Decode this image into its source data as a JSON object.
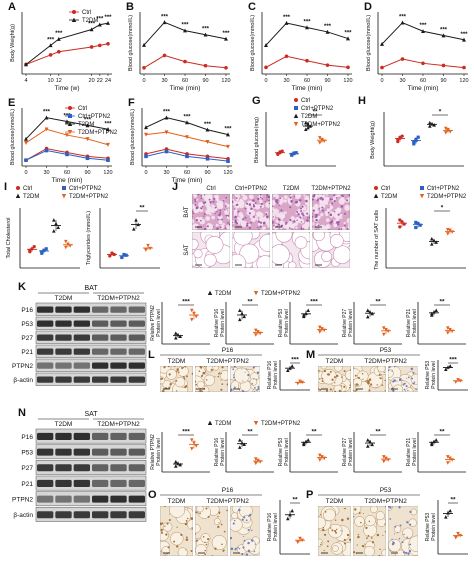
{
  "colors": {
    "ctrl": "#cc2b22",
    "t2dm": "#1b1b1b",
    "ptpn2": "#2c60c4",
    "t2dm_ptpn2": "#e2621c",
    "he_pink": "#e3b0cf",
    "he_purple": "#9c5aa8",
    "ihc_brown": "#a7733c",
    "ihc_blue": "#6e7fbf",
    "blot": "#1a1a1a"
  },
  "panels": {
    "A": {
      "letter": "A",
      "xlabel": "Time (w)",
      "ylabel": "Body Weight(g)",
      "xticks": [
        "4",
        "10",
        "12",
        "20",
        "22",
        "24"
      ],
      "legend": [
        "Ctrl",
        "T2DM"
      ],
      "stars": "*** ***** ** ***"
    },
    "B": {
      "letter": "B",
      "xlabel": "Time (min)",
      "ylabel": "Blood glucose(mmol/L)",
      "xticks": [
        "0",
        "30",
        "60",
        "90",
        "120"
      ],
      "stars": "***"
    },
    "C": {
      "letter": "C",
      "xlabel": "Time (min)",
      "ylabel": "Blood glucose(mmol/L)",
      "xticks": [
        "0",
        "30",
        "60",
        "90",
        "120"
      ],
      "stars": "***"
    },
    "D": {
      "letter": "D",
      "xlabel": "Time (min)",
      "ylabel": "Blood glucose(mmol/L)",
      "xticks": [
        "0",
        "30",
        "60",
        "90",
        "120"
      ],
      "stars": "***"
    },
    "E": {
      "letter": "E",
      "xlabel": "Time (min)",
      "ylabel": "Blood glucose(mmol/L)",
      "xticks": [
        "0",
        "30",
        "60",
        "90",
        "120"
      ],
      "legend": [
        "Ctrl",
        "Ctrl+PTPN2",
        "T2DM",
        "T2DM+PTPN2"
      ],
      "stars": "***"
    },
    "F": {
      "letter": "F",
      "xlabel": "Time (min)",
      "ylabel": "Blood glucose(mmol/L)",
      "xticks": [
        "0",
        "30",
        "60",
        "90",
        "120"
      ],
      "stars": "***"
    },
    "G": {
      "letter": "G",
      "ylabel": "Blood glucose(mg)",
      "legend": [
        "Ctrl",
        "Ctrl+PTPN2",
        "T2DM",
        "T2DM+PTPN2"
      ],
      "stars": "**"
    },
    "H": {
      "letter": "H",
      "ylabel": "Body Weight(g)",
      "stars": "*"
    },
    "I": {
      "letter": "I",
      "legend": [
        "Ctrl",
        "Ctrl+PTPN2",
        "T2DM",
        "T2DM+PTPN2"
      ],
      "ylabel_left": "Total Cholesterol",
      "ylabel_right": "Triglycerides (mmol/L)",
      "stars": "**"
    },
    "J": {
      "letter": "J",
      "cols": [
        "Ctrl",
        "Ctrl+PTPN2",
        "T2DM",
        "T2DM+PTPN2"
      ],
      "rows": [
        "BAT",
        "SAT"
      ],
      "legend": [
        "Ctrl",
        "Ctrl+PTPN2",
        "T2DM",
        "T2DM+PTPN2"
      ],
      "ylabel": "The number of SAT cells",
      "stars": "*"
    },
    "K": {
      "letter": "K",
      "tissue": "BAT",
      "groups": [
        "T2DM",
        "T2DM+PTPN2"
      ],
      "bands": [
        "P16",
        "P53",
        "P27",
        "P21",
        "PTPN2",
        "β-actin"
      ],
      "legend": [
        "T2DM",
        "T2DM+PTPN2"
      ],
      "plots": [
        "Relative PTPN2 Protein level",
        "Relative P16 Protein level",
        "Relative P53 Protein level",
        "Relative P27 Protein level",
        "Relative P21 Protein level"
      ],
      "stars": [
        "***",
        "**",
        "***",
        "**",
        "**"
      ]
    },
    "L": {
      "letter": "L",
      "marker": "P16",
      "groups": [
        "T2DM",
        "T2DM+PTPN2"
      ],
      "ylabel": "Relative P16 Protein level",
      "stars": "***"
    },
    "M": {
      "letter": "M",
      "marker": "P53",
      "groups": [
        "T2DM",
        "T2DM+PTPN2"
      ],
      "ylabel": "Relative P53 Protein level",
      "stars": "***"
    },
    "N": {
      "letter": "N",
      "tissue": "SAT",
      "groups": [
        "T2DM",
        "T2DM+PTPN2"
      ],
      "bands": [
        "P16",
        "P53",
        "P27",
        "P21",
        "PTPN2",
        "β-actin"
      ],
      "legend": [
        "T2DM",
        "T2DM+PTPN2"
      ],
      "plots": [
        "Relative PTPN2 Protein level",
        "Relative P16 Protein level",
        "Relative P53 Protein level",
        "Relative P27 Protein level",
        "Relative P21 Protein level"
      ],
      "stars": [
        "***",
        "**",
        "**",
        "**",
        "**"
      ]
    },
    "O": {
      "letter": "O",
      "marker": "P16",
      "groups": [
        "T2DM",
        "T2DM+PTPN2"
      ],
      "ylabel": "Relative P16 Protein level",
      "stars": "**"
    },
    "P": {
      "letter": "P",
      "marker": "P53",
      "groups": [
        "T2DM",
        "T2DM+PTPN2"
      ],
      "ylabel": "Relative P53 Protein level",
      "stars": "**"
    }
  },
  "chart_data": [
    {
      "panel": "A",
      "type": "line",
      "x": [
        4,
        10,
        12,
        20,
        22,
        24
      ],
      "series": [
        {
          "name": "Ctrl",
          "values": [
            18,
            24,
            26,
            29,
            30,
            31
          ]
        },
        {
          "name": "T2DM",
          "values": [
            18,
            30,
            34,
            40,
            43,
            44
          ]
        }
      ]
    },
    {
      "panel": "B",
      "type": "line",
      "x": [
        0,
        30,
        60,
        90,
        120
      ],
      "series": [
        {
          "name": "T2DM",
          "values": [
            20,
            31,
            27,
            25,
            23
          ]
        },
        {
          "name": "Ctrl",
          "values": [
            9,
            15,
            12,
            10,
            9
          ]
        }
      ]
    },
    {
      "panel": "C",
      "type": "line",
      "x": [
        0,
        30,
        60,
        90,
        120
      ],
      "series": [
        {
          "name": "T2DM",
          "values": [
            18,
            28,
            26,
            24,
            21
          ]
        },
        {
          "name": "Ctrl",
          "values": [
            8,
            13,
            11,
            9,
            8
          ]
        }
      ]
    },
    {
      "panel": "D",
      "type": "line",
      "x": [
        0,
        30,
        60,
        90,
        120
      ],
      "series": [
        {
          "name": "T2DM",
          "values": [
            19,
            29,
            25,
            23,
            21
          ]
        },
        {
          "name": "Ctrl",
          "values": [
            8,
            12,
            10,
            9,
            8
          ]
        }
      ]
    },
    {
      "panel": "E",
      "type": "line",
      "x": [
        0,
        30,
        60,
        90,
        120
      ],
      "series": [
        {
          "name": "Ctrl",
          "values": [
            8,
            14,
            12,
            10,
            9
          ]
        },
        {
          "name": "Ctrl+PTPN2",
          "values": [
            8,
            13,
            11,
            9,
            8
          ]
        },
        {
          "name": "T2DM",
          "values": [
            19,
            30,
            28,
            26,
            24
          ]
        },
        {
          "name": "T2DM+PTPN2",
          "values": [
            17,
            24,
            21,
            19,
            16
          ]
        }
      ]
    },
    {
      "panel": "F",
      "type": "line",
      "x": [
        0,
        30,
        60,
        90,
        120
      ],
      "series": [
        {
          "name": "T2DM",
          "values": [
            20,
            24,
            22,
            19,
            17
          ]
        },
        {
          "name": "T2DM+PTPN2",
          "values": [
            17,
            18,
            16,
            14,
            12
          ]
        },
        {
          "name": "Ctrl",
          "values": [
            9,
            11,
            9,
            8,
            7
          ]
        },
        {
          "name": "Ctrl+PTPN2",
          "values": [
            8,
            10,
            8,
            7,
            6
          ]
        }
      ]
    },
    {
      "panel": "G",
      "type": "scatter",
      "groups": [
        {
          "name": "Ctrl",
          "values": [
            7,
            8,
            9,
            7.5,
            8.5
          ]
        },
        {
          "name": "Ctrl+PTPN2",
          "values": [
            6.5,
            7.5,
            8,
            7,
            7.8
          ]
        },
        {
          "name": "T2DM",
          "values": [
            22,
            25,
            24,
            26,
            23
          ]
        },
        {
          "name": "T2DM+PTPN2",
          "values": [
            14,
            16,
            15,
            17,
            15.5
          ]
        }
      ]
    },
    {
      "panel": "H",
      "type": "scatter",
      "groups": [
        {
          "name": "Ctrl",
          "values": [
            22,
            25,
            27,
            24,
            26
          ]
        },
        {
          "name": "Ctrl+PTPN2",
          "values": [
            20,
            23,
            26,
            22,
            24
          ]
        },
        {
          "name": "T2DM",
          "values": [
            36,
            38,
            37,
            39,
            38
          ]
        },
        {
          "name": "T2DM+PTPN2",
          "values": [
            30,
            33,
            31,
            34,
            32
          ]
        }
      ]
    },
    {
      "panel": "I-left",
      "type": "scatter",
      "groups": [
        {
          "name": "Ctrl",
          "values": [
            2.2,
            2.6,
            2.9,
            2.4
          ]
        },
        {
          "name": "Ctrl+PTPN2",
          "values": [
            2.0,
            2.4,
            2.6,
            2.2
          ]
        },
        {
          "name": "T2DM",
          "values": [
            5.0,
            6.0,
            5.5,
            6.5
          ]
        },
        {
          "name": "T2DM+PTPN2",
          "values": [
            2.8,
            3.2,
            3.0,
            3.6
          ]
        }
      ]
    },
    {
      "panel": "I-right",
      "type": "scatter",
      "groups": [
        {
          "name": "Ctrl",
          "values": [
            0.8,
            1.0,
            0.9
          ]
        },
        {
          "name": "Ctrl+PTPN2",
          "values": [
            0.7,
            0.9,
            0.85
          ]
        },
        {
          "name": "T2DM",
          "values": [
            2.6,
            3.2,
            2.9
          ]
        },
        {
          "name": "T2DM+PTPN2",
          "values": [
            1.2,
            1.5,
            1.3
          ]
        }
      ]
    },
    {
      "panel": "J",
      "type": "scatter",
      "groups": [
        {
          "name": "Ctrl",
          "values": [
            120,
            135,
            128,
            140
          ]
        },
        {
          "name": "Ctrl+PTPN2",
          "values": [
            118,
            130,
            125,
            133
          ]
        },
        {
          "name": "T2DM",
          "values": [
            70,
            80,
            75,
            85
          ]
        },
        {
          "name": "T2DM+PTPN2",
          "values": [
            100,
            110,
            105,
            112
          ]
        }
      ]
    },
    {
      "panel": "K",
      "type": "scatter",
      "plots": [
        {
          "groups": [
            {
              "name": "T2DM",
              "values": [
                0.2,
                0.3,
                0.25,
                0.35
              ]
            },
            {
              "name": "T2DM+PTPN2",
              "values": [
                0.8,
                1.0,
                0.9,
                1.1
              ]
            }
          ]
        },
        {
          "groups": [
            {
              "name": "T2DM",
              "values": [
                0.8,
                1.0,
                0.9,
                1.1
              ]
            },
            {
              "name": "T2DM+PTPN2",
              "values": [
                0.3,
                0.4,
                0.35,
                0.45
              ]
            }
          ]
        },
        {
          "groups": [
            {
              "name": "T2DM",
              "values": [
                0.9,
                1.0,
                1.1,
                0.95
              ]
            },
            {
              "name": "T2DM+PTPN2",
              "values": [
                0.4,
                0.5,
                0.45,
                0.55
              ]
            }
          ]
        },
        {
          "groups": [
            {
              "name": "T2DM",
              "values": [
                0.85,
                1.0,
                0.95,
                1.05
              ]
            },
            {
              "name": "T2DM+PTPN2",
              "values": [
                0.3,
                0.45,
                0.4,
                0.5
              ]
            }
          ]
        },
        {
          "groups": [
            {
              "name": "T2DM",
              "values": [
                0.9,
                1.0,
                1.05,
                0.95
              ]
            },
            {
              "name": "T2DM+PTPN2",
              "values": [
                0.35,
                0.45,
                0.4,
                0.5
              ]
            }
          ]
        }
      ]
    },
    {
      "panel": "L",
      "type": "scatter",
      "groups": [
        {
          "name": "T2DM",
          "values": [
            0.9,
            1.0,
            1.1
          ]
        },
        {
          "name": "T2DM+PTPN2",
          "values": [
            0.3,
            0.4,
            0.35
          ]
        }
      ]
    },
    {
      "panel": "M",
      "type": "scatter",
      "groups": [
        {
          "name": "T2DM",
          "values": [
            0.9,
            1.0,
            1.05
          ]
        },
        {
          "name": "T2DM+PTPN2",
          "values": [
            0.35,
            0.45,
            0.4
          ]
        }
      ]
    },
    {
      "panel": "N",
      "type": "scatter",
      "plots": [
        {
          "groups": [
            {
              "name": "T2DM",
              "values": [
                0.2,
                0.3,
                0.25,
                0.35
              ]
            },
            {
              "name": "T2DM+PTPN2",
              "values": [
                0.8,
                1.0,
                0.9,
                1.1
              ]
            }
          ]
        },
        {
          "groups": [
            {
              "name": "T2DM",
              "values": [
                0.85,
                1.0,
                0.95,
                1.1
              ]
            },
            {
              "name": "T2DM+PTPN2",
              "values": [
                0.3,
                0.4,
                0.35,
                0.45
              ]
            }
          ]
        },
        {
          "groups": [
            {
              "name": "T2DM",
              "values": [
                0.9,
                1.0,
                1.05,
                0.95
              ]
            },
            {
              "name": "T2DM+PTPN2",
              "values": [
                0.4,
                0.5,
                0.45,
                0.55
              ]
            }
          ]
        },
        {
          "groups": [
            {
              "name": "T2DM",
              "values": [
                0.85,
                1.0,
                0.9,
                1.05
              ]
            },
            {
              "name": "T2DM+PTPN2",
              "values": [
                0.35,
                0.45,
                0.4,
                0.5
              ]
            }
          ]
        },
        {
          "groups": [
            {
              "name": "T2DM",
              "values": [
                0.9,
                1.0,
                1.05,
                0.95
              ]
            },
            {
              "name": "T2DM+PTPN2",
              "values": [
                0.3,
                0.45,
                0.4,
                0.5
              ]
            }
          ]
        }
      ]
    },
    {
      "panel": "O",
      "type": "scatter",
      "groups": [
        {
          "name": "T2DM",
          "values": [
            0.9,
            1.0,
            1.1
          ]
        },
        {
          "name": "T2DM+PTPN2",
          "values": [
            0.3,
            0.4,
            0.35
          ]
        }
      ]
    },
    {
      "panel": "P",
      "type": "scatter",
      "groups": [
        {
          "name": "T2DM",
          "values": [
            0.9,
            1.0,
            1.05
          ]
        },
        {
          "name": "T2DM+PTPN2",
          "values": [
            0.4,
            0.5,
            0.45
          ]
        }
      ]
    }
  ]
}
